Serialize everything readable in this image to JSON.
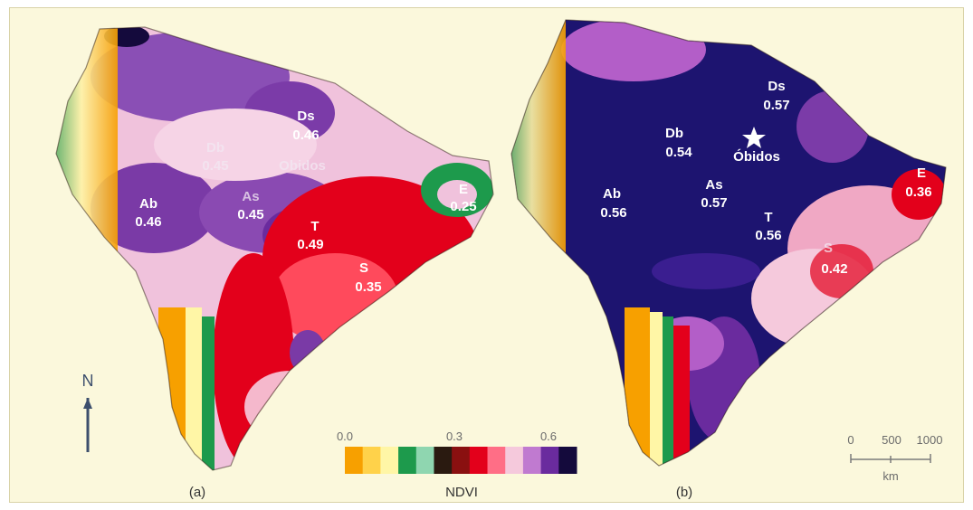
{
  "panels": [
    {
      "caption": "(a)",
      "regions": [
        {
          "code": "Ds",
          "value": "0.46"
        },
        {
          "code": "Db",
          "value": "0.45"
        },
        {
          "code": "Ab",
          "value": "0.46"
        },
        {
          "code": "As",
          "value": "0.45"
        },
        {
          "code": "T",
          "value": "0.49"
        },
        {
          "code": "S",
          "value": "0.35"
        },
        {
          "code": "E",
          "value": "0.25"
        }
      ],
      "place": "Obidos"
    },
    {
      "caption": "(b)",
      "regions": [
        {
          "code": "Ds",
          "value": "0.57"
        },
        {
          "code": "Db",
          "value": "0.54"
        },
        {
          "code": "Ab",
          "value": "0.56"
        },
        {
          "code": "As",
          "value": "0.57"
        },
        {
          "code": "T",
          "value": "0.56"
        },
        {
          "code": "S",
          "value": "0.42"
        },
        {
          "code": "E",
          "value": "0.36"
        }
      ],
      "place": "Óbidos"
    }
  ],
  "north_arrow": {
    "label": "N",
    "icon": "north-arrow-icon"
  },
  "legend": {
    "title": "NDVI",
    "ticks": [
      "0.0",
      "0.3",
      "0.6"
    ],
    "colors": [
      "#f7a000",
      "#ffd24a",
      "#fff6a6",
      "#1d9a4c",
      "#8fd6b0",
      "#2a1a10",
      "#8a1010",
      "#e3001b",
      "#ff6e86",
      "#f5c9dc",
      "#c07ad0",
      "#6a2b9e",
      "#140a3c"
    ]
  },
  "scale_bar": {
    "ticks": [
      "0",
      "500",
      "1000"
    ],
    "unit": "km"
  },
  "colors": {
    "background": "#fbf8dc",
    "map_low": "#e3001b",
    "map_mid": "#f0b6d8",
    "map_high": "#1d1470"
  }
}
